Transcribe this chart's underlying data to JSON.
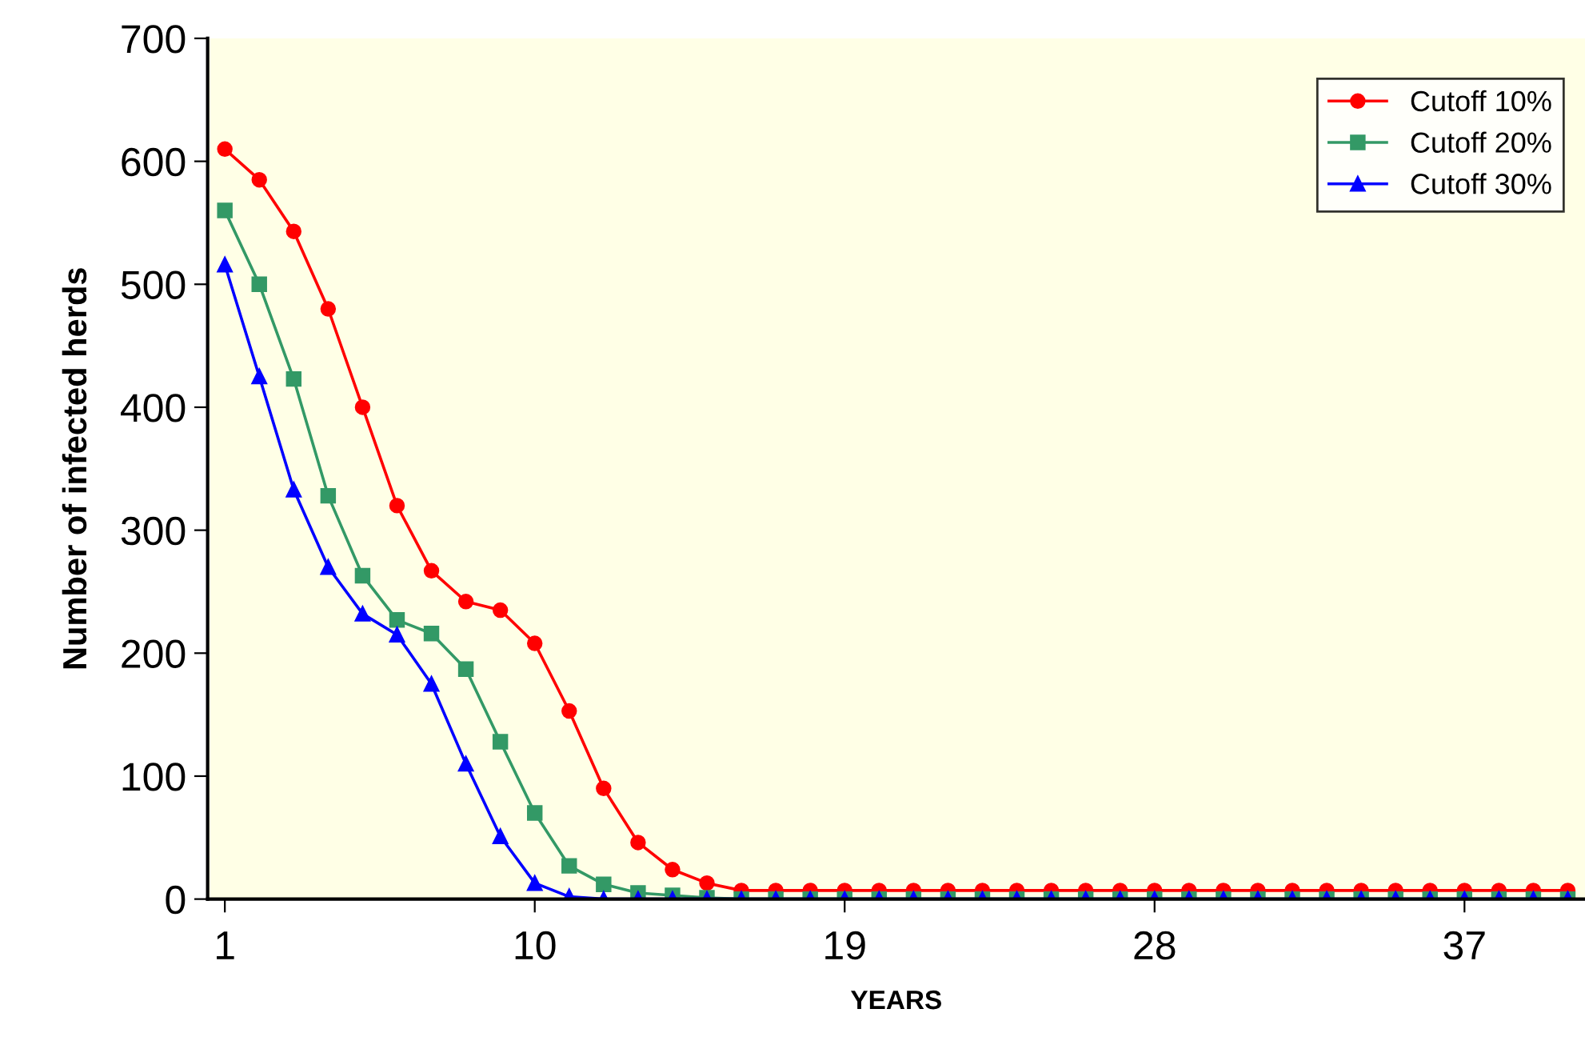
{
  "chart_data": {
    "type": "line",
    "xlabel": "YEARS",
    "ylabel": "Number of infected herds",
    "x": [
      1,
      2,
      3,
      4,
      5,
      6,
      7,
      8,
      9,
      10,
      11,
      12,
      13,
      14,
      15,
      16,
      17,
      18,
      19,
      20,
      21,
      22,
      23,
      24,
      25,
      26,
      27,
      28,
      29,
      30,
      31,
      32,
      33,
      34,
      35,
      36,
      37,
      38,
      39,
      40
    ],
    "series": [
      {
        "name": "Cutoff 10%",
        "color": "#ff0000",
        "marker": "circle",
        "values": [
          610,
          585,
          543,
          480,
          400,
          320,
          267,
          242,
          235,
          208,
          153,
          90,
          46,
          24,
          13,
          7,
          7,
          7,
          7,
          7,
          7,
          7,
          7,
          7,
          7,
          7,
          7,
          7,
          7,
          7,
          7,
          7,
          7,
          7,
          7,
          7,
          7,
          7,
          7,
          7
        ]
      },
      {
        "name": "Cutoff 20%",
        "color": "#339966",
        "marker": "square",
        "values": [
          560,
          500,
          423,
          328,
          263,
          227,
          216,
          187,
          128,
          70,
          27,
          12,
          5,
          3,
          1,
          0,
          0,
          0,
          0,
          0,
          0,
          0,
          0,
          0,
          0,
          0,
          0,
          0,
          0,
          0,
          0,
          0,
          0,
          0,
          0,
          0,
          0,
          0,
          0,
          0
        ]
      },
      {
        "name": "Cutoff 30%",
        "color": "#0000ff",
        "marker": "triangle",
        "values": [
          516,
          425,
          333,
          270,
          232,
          215,
          175,
          110,
          51,
          13,
          2,
          0,
          0,
          0,
          0,
          0,
          0,
          0,
          0,
          0,
          0,
          0,
          0,
          0,
          0,
          0,
          0,
          0,
          0,
          0,
          0,
          0,
          0,
          0,
          0,
          0,
          0,
          0,
          0,
          0
        ]
      }
    ],
    "xlim": [
      0.5,
      40.5
    ],
    "xticks": [
      1,
      10,
      19,
      28,
      37
    ],
    "ylim": [
      0,
      700
    ],
    "yticks": [
      0,
      100,
      200,
      300,
      400,
      500,
      600,
      700
    ],
    "grid": false,
    "legend": "top right",
    "line_style": "solid"
  }
}
